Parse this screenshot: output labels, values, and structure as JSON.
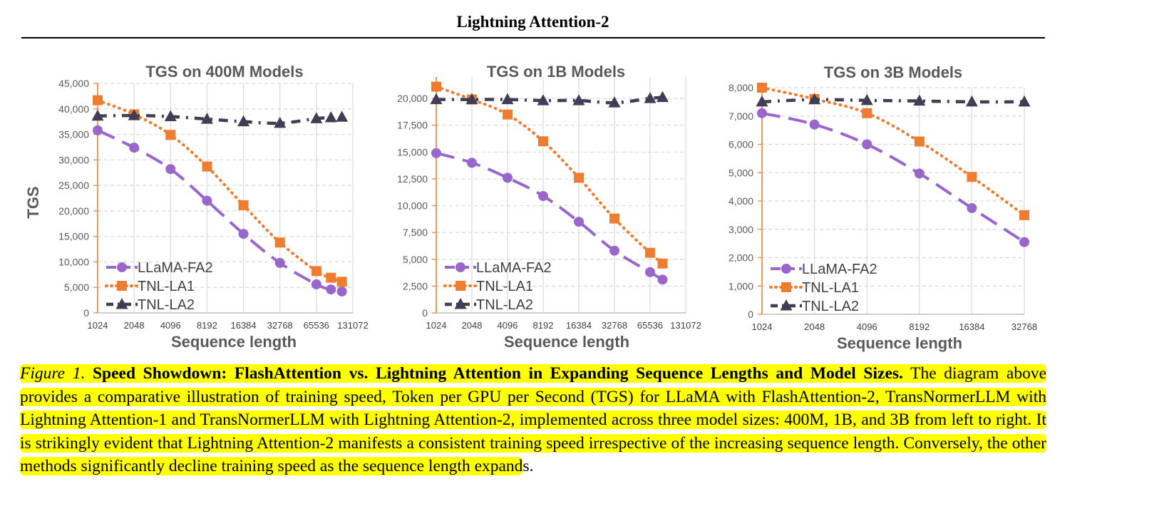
{
  "header": {
    "title": "Lightning Attention-2"
  },
  "caption": {
    "figure_label": "Figure 1.",
    "bold_title": "Speed Showdown: FlashAttention vs. Lightning Attention in Expanding Sequence Lengths and Model Sizes.",
    "body": " The diagram above provides a comparative illustration of training speed, Token per GPU per Second (TGS) for LLaMA with FlashAttention-2, TransNormerLLM with Lightning Attention-1 and TransNormerLLM with Lightning Attention-2, implemented across three model sizes: 400M, 1B, and 3B from left to right. It is strikingly evident that Lightning Attention-2 manifests a consistent training speed irrespective of the increasing sequence length. Conversely, the other methods significantly decline training speed as the sequence length expand",
    "tail": "s."
  },
  "colors": {
    "llama": "#9966CC",
    "la1": "#EE7D31",
    "la2": "#403D55",
    "title": "#595959",
    "grid": "#D9D9D9"
  },
  "chart_data": [
    {
      "type": "line",
      "title": "TGS on 400M Models",
      "xlabel": "Sequence length",
      "ylabel": "TGS",
      "ylim": [
        0,
        45000
      ],
      "yticks": [
        0,
        5000,
        10000,
        15000,
        20000,
        25000,
        30000,
        35000,
        40000,
        45000
      ],
      "ytick_labels": [
        "0",
        "5,000",
        "10,000",
        "15,000",
        "20,000",
        "25,000",
        "30,000",
        "35,000",
        "40,000",
        "45,000"
      ],
      "x_categories": [
        "1024",
        "2048",
        "4096",
        "8192",
        "16384",
        "32768",
        "65536",
        "131072"
      ],
      "legend": "bottom-left",
      "series": [
        {
          "name": "LLaMA-FA2",
          "marker": "circle",
          "x": [
            0,
            1,
            2,
            3,
            4,
            5,
            6,
            6.4,
            6.7
          ],
          "values": [
            35800,
            32400,
            28200,
            22000,
            15500,
            9800,
            5600,
            4600,
            4200
          ]
        },
        {
          "name": "TNL-LA1",
          "marker": "square",
          "x": [
            0,
            1,
            2,
            3,
            4,
            5,
            6,
            6.4,
            6.7
          ],
          "values": [
            41700,
            38900,
            34900,
            28700,
            21100,
            13800,
            8200,
            6900,
            6100
          ]
        },
        {
          "name": "TNL-LA2",
          "marker": "triangle",
          "x": [
            0,
            1,
            2,
            3,
            4,
            5,
            6,
            6.4,
            6.7
          ],
          "values": [
            38600,
            38700,
            38500,
            38000,
            37500,
            37200,
            38100,
            38300,
            38400
          ]
        }
      ]
    },
    {
      "type": "line",
      "title": "TGS on 1B Models",
      "xlabel": "Sequence length",
      "ylabel": "",
      "ylim": [
        0,
        22000
      ],
      "yticks": [
        0,
        2500,
        5000,
        7500,
        10000,
        12500,
        15000,
        17500,
        20000
      ],
      "ytick_labels": [
        "0",
        "2,500",
        "5,000",
        "7,500",
        "10,000",
        "12,500",
        "15,000",
        "17,500",
        "20,000"
      ],
      "x_categories": [
        "1024",
        "2048",
        "4096",
        "8192",
        "16384",
        "32768",
        "65536",
        "131072"
      ],
      "legend": "bottom-left",
      "series": [
        {
          "name": "LLaMA-FA2",
          "marker": "circle",
          "x": [
            0,
            1,
            2,
            3,
            4,
            5,
            6,
            6.35
          ],
          "values": [
            14900,
            14000,
            12600,
            10900,
            8500,
            5800,
            3800,
            3100
          ]
        },
        {
          "name": "TNL-LA1",
          "marker": "square",
          "x": [
            0,
            1,
            2,
            3,
            4,
            5,
            6,
            6.35
          ],
          "values": [
            21100,
            19900,
            18500,
            16000,
            12600,
            8800,
            5600,
            4600
          ]
        },
        {
          "name": "TNL-LA2",
          "marker": "triangle",
          "x": [
            0,
            1,
            2,
            3,
            4,
            5,
            6,
            6.35
          ],
          "values": [
            19900,
            19900,
            19900,
            19800,
            19800,
            19600,
            20000,
            20100
          ]
        }
      ]
    },
    {
      "type": "line",
      "title": "TGS on 3B Models",
      "xlabel": "Sequence length",
      "ylabel": "",
      "ylim": [
        0,
        8000
      ],
      "yticks": [
        0,
        1000,
        2000,
        3000,
        4000,
        5000,
        6000,
        7000,
        8000
      ],
      "ytick_labels": [
        "0",
        "1,000",
        "2,000",
        "3,000",
        "4,000",
        "5,000",
        "6,000",
        "7,000",
        "8,000"
      ],
      "x_categories": [
        "1024",
        "2048",
        "4096",
        "8192",
        "16384",
        "32768"
      ],
      "legend": "bottom-left",
      "series": [
        {
          "name": "LLaMA-FA2",
          "marker": "circle",
          "x": [
            0,
            1,
            2,
            3,
            4,
            5
          ],
          "values": [
            7100,
            6700,
            6000,
            4970,
            3750,
            2550
          ]
        },
        {
          "name": "TNL-LA1",
          "marker": "square",
          "x": [
            0,
            1,
            2,
            3,
            4,
            5
          ],
          "values": [
            8000,
            7600,
            7100,
            6100,
            4850,
            3500
          ]
        },
        {
          "name": "TNL-LA2",
          "marker": "triangle",
          "x": [
            0,
            1,
            2,
            3,
            4,
            5
          ],
          "values": [
            7500,
            7580,
            7550,
            7530,
            7500,
            7500
          ]
        }
      ]
    }
  ]
}
